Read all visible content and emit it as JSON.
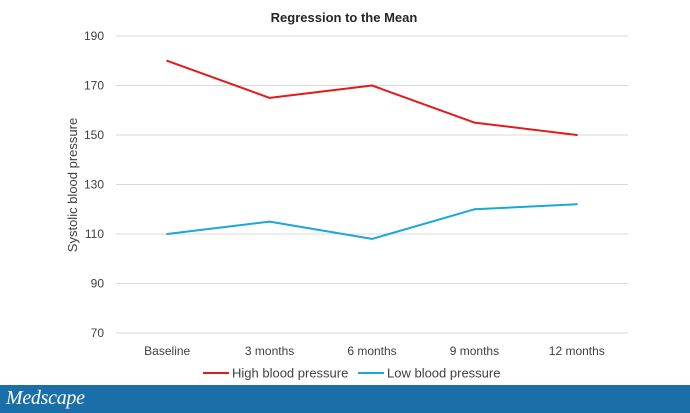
{
  "chart_data": {
    "type": "line",
    "title": "Regression to the Mean",
    "xlabel": "",
    "ylabel": "Systolic blood pressure",
    "categories": [
      "Baseline",
      "3 months",
      "6 months",
      "9 months",
      "12 months"
    ],
    "ylim": [
      70,
      190
    ],
    "yticks": [
      "70",
      "90",
      "110",
      "130",
      "150",
      "170",
      "190"
    ],
    "grid": true,
    "legend_position": "bottom",
    "series": [
      {
        "name": "High blood pressure",
        "color": "#e31a1c",
        "values": [
          180,
          165,
          170,
          155,
          150
        ]
      },
      {
        "name": "Low blood pressure",
        "color": "#1aa7d9",
        "values": [
          110,
          115,
          108,
          120,
          122
        ]
      }
    ]
  },
  "footer": {
    "brand": "Medscape",
    "color": "#1a6fa8"
  }
}
